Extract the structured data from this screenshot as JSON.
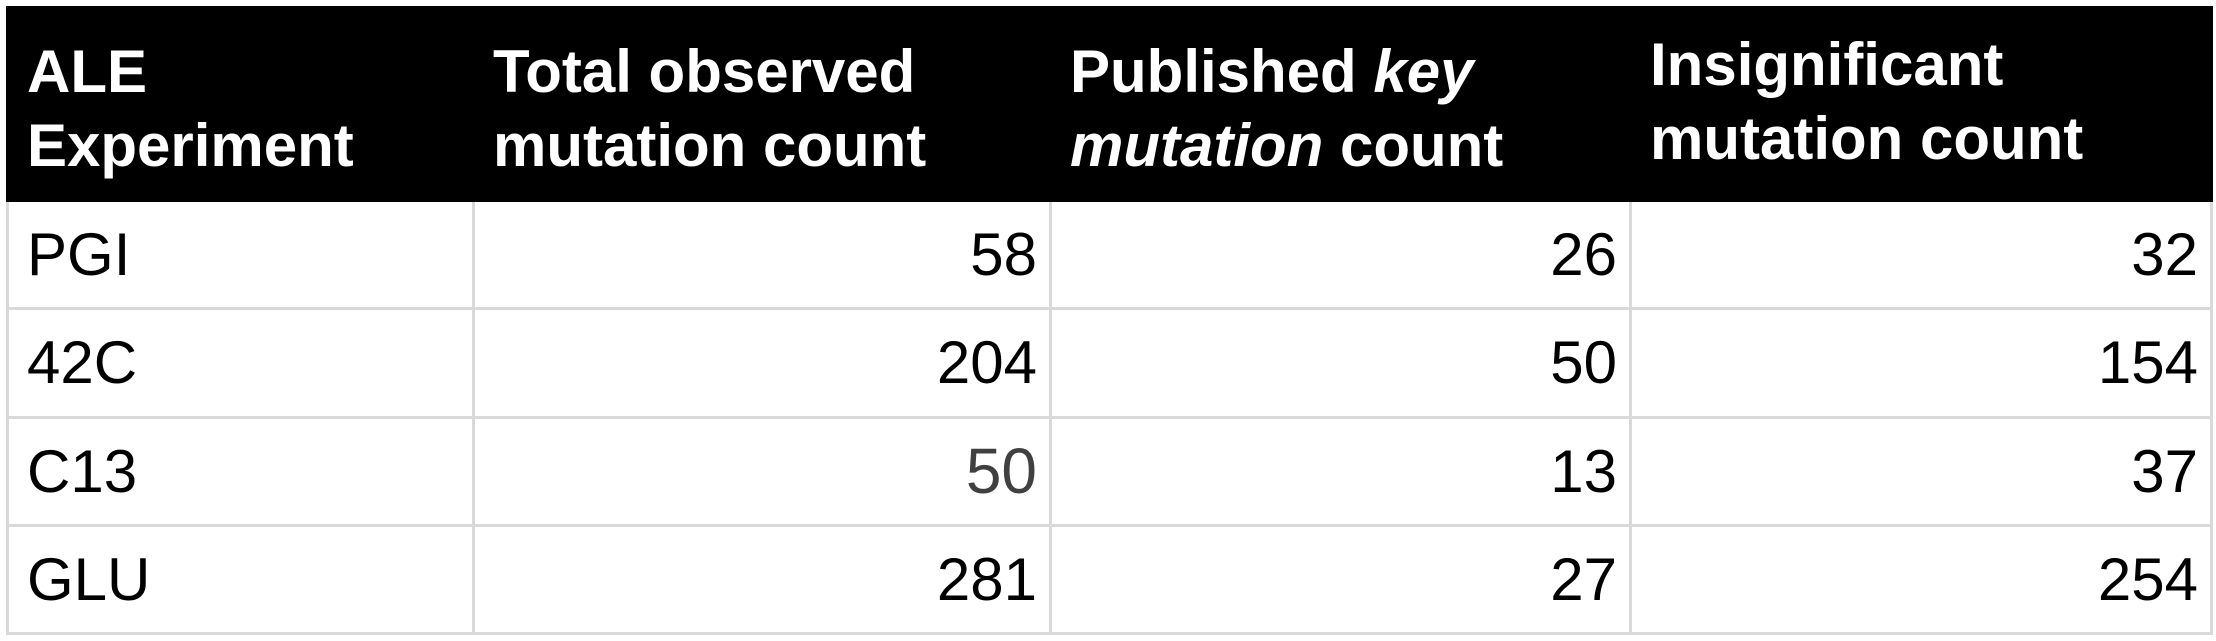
{
  "table": {
    "headers": {
      "col1": {
        "line1": "ALE",
        "line2": "Experiment"
      },
      "col2": {
        "line1": "Total observed",
        "line2": "mutation count"
      },
      "col3": {
        "plain_a": "Published ",
        "italic_a": "key",
        "italic_b": "mutation",
        "plain_b": " count"
      },
      "col4": {
        "line1": "Insignificant",
        "line2": "mutation count"
      }
    },
    "rows": [
      {
        "experiment": "PGI",
        "total": "58",
        "key": "26",
        "insignificant": "32"
      },
      {
        "experiment": "42C",
        "total": "204",
        "key": "50",
        "insignificant": "154"
      },
      {
        "experiment": "C13",
        "total": "50",
        "key": "13",
        "insignificant": "37"
      },
      {
        "experiment": "GLU",
        "total": "281",
        "key": "27",
        "insignificant": "254"
      }
    ]
  }
}
